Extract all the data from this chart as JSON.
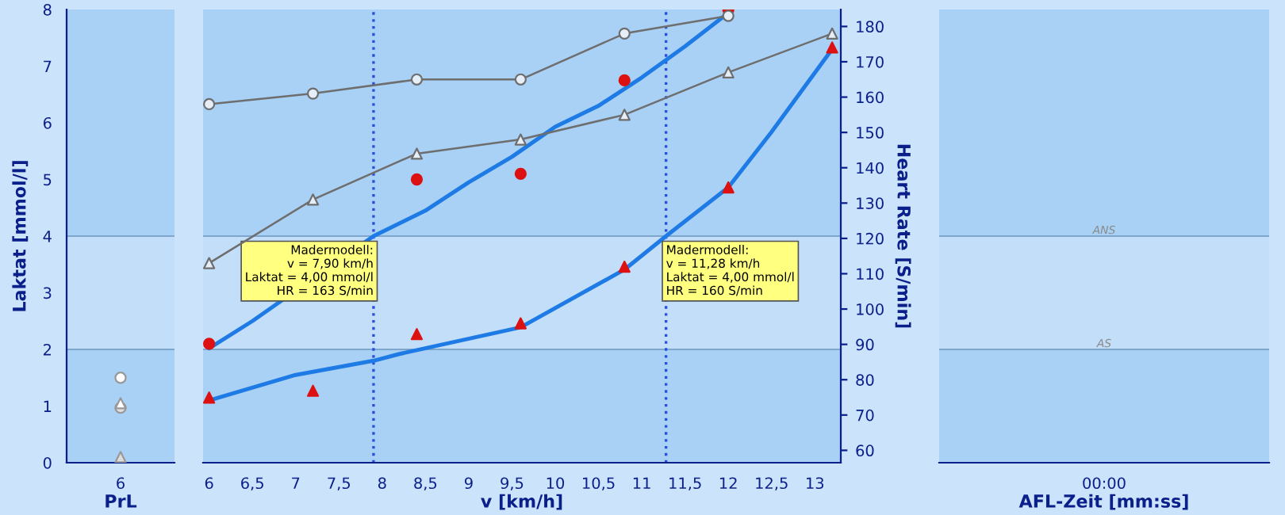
{
  "chart_data": [
    {
      "type": "scatter",
      "xlabel": "PrL",
      "ylabel": "Laktat [mmol/l]",
      "categories": [
        "6"
      ],
      "ylim": [
        0,
        8
      ],
      "yticks": [
        0,
        1,
        2,
        3,
        4,
        5,
        6,
        7,
        8
      ],
      "bands": [
        {
          "axis": "y",
          "from": 0,
          "to": 2,
          "color": "#a9d0f5"
        },
        {
          "axis": "y",
          "from": 2,
          "to": 4,
          "color": "#c3def8"
        },
        {
          "axis": "y",
          "from": 4,
          "to": 8,
          "color": "#a9d0f5"
        }
      ],
      "ref_lines": [
        {
          "axis": "y",
          "value": 2,
          "color": "#7fa6cc"
        },
        {
          "axis": "y",
          "value": 4,
          "color": "#7fa6cc"
        }
      ],
      "series": [
        {
          "marker": "circle",
          "color": "#ffffff",
          "values": [
            1.5
          ]
        },
        {
          "marker": "circle",
          "color": "#dddddd",
          "values": [
            0.97
          ]
        },
        {
          "marker": "triangle",
          "color": "#ffffff",
          "values": [
            1.05
          ]
        },
        {
          "marker": "triangle",
          "color": "#dddddd",
          "values": [
            0.1
          ]
        }
      ]
    },
    {
      "type": "line",
      "xlabel": "v [km/h]",
      "xlim": [
        5.93,
        13.3
      ],
      "xticks": [
        6,
        {
          "value": 6.5,
          "label": "6,5"
        },
        7,
        {
          "value": 7.5,
          "label": "7,5"
        },
        8,
        {
          "value": 8.5,
          "label": "8,5"
        },
        9,
        {
          "value": 9.5,
          "label": "9,5"
        },
        10,
        {
          "value": 10.5,
          "label": "10,5"
        },
        11,
        {
          "value": 11.5,
          "label": "11,5"
        },
        12,
        {
          "value": 12.5,
          "label": "12,5"
        },
        13
      ],
      "ylim": [
        0,
        8
      ],
      "y2lim": [
        56.5,
        184.8
      ],
      "y2ticks": [
        60,
        70,
        80,
        90,
        100,
        110,
        120,
        130,
        140,
        150,
        160,
        170,
        180
      ],
      "y2label": "Heart Rate [S/min]",
      "bands": [
        {
          "axis": "y",
          "from": 0,
          "to": 2,
          "color": "#a9d0f5"
        },
        {
          "axis": "y",
          "from": 2,
          "to": 4,
          "color": "#c3def8"
        },
        {
          "axis": "y",
          "from": 4,
          "to": 8,
          "color": "#a9d0f5"
        }
      ],
      "ref_lines": [
        {
          "axis": "y",
          "value": 2,
          "color": "#7fa6cc"
        },
        {
          "axis": "y",
          "value": 4,
          "color": "#7fa6cc"
        },
        {
          "axis": "x",
          "value": 7.9,
          "color": "#2a4fe0",
          "line_style": "dotted"
        },
        {
          "axis": "x",
          "value": 11.28,
          "color": "#2a4fe0",
          "line_style": "dotted"
        }
      ],
      "annotations": [
        {
          "text": "Madermodell:\nv = 7,90 km/h\nLaktat = 4,00 mmol/l\nHR = 163 S/min",
          "x": 7.9,
          "y": 4.0
        },
        {
          "text": "Madermodell:\nv = 11,28 km/h\nLaktat = 4,00 mmol/l\nHR = 160 S/min",
          "x": 11.28,
          "y": 4.0
        }
      ],
      "series": [
        {
          "axis": "y2",
          "marker": "circle",
          "color": "#6e6e6e",
          "x": [
            6,
            7.2,
            8.4,
            9.6,
            10.8,
            12.0
          ],
          "values": [
            158,
            161,
            165,
            165,
            178,
            183
          ]
        },
        {
          "axis": "y2",
          "marker": "triangle",
          "color": "#6e6e6e",
          "x": [
            6,
            7.2,
            8.4,
            9.6,
            10.8,
            12.0,
            13.2
          ],
          "values": [
            113,
            131,
            144,
            148,
            155,
            167,
            178
          ]
        },
        {
          "marker": "none",
          "color": "#1e7be6",
          "x": [
            6,
            6.5,
            7,
            7.5,
            7.9,
            8.5,
            9,
            9.5,
            10,
            10.5,
            11,
            11.5,
            12
          ],
          "values": [
            2.02,
            2.5,
            null,
            null,
            4.0,
            4.45,
            4.95,
            5.4,
            5.93,
            6.3,
            6.8,
            7.35,
            7.94
          ]
        },
        {
          "marker": "none",
          "color": "#1e7be6",
          "x": [
            6,
            7,
            7.9,
            8.2,
            9.6,
            10.8,
            11.28,
            12,
            12.5,
            13.2
          ],
          "values": [
            1.1,
            1.55,
            1.8,
            1.92,
            2.39,
            3.41,
            4.0,
            4.86,
            5.84,
            7.3
          ]
        },
        {
          "type": "scatter",
          "marker": "circle",
          "color": "#dd1111",
          "x": [
            6,
            8.4,
            9.6,
            10.8,
            12.0
          ],
          "values": [
            2.1,
            5.0,
            5.1,
            6.75,
            8.0
          ]
        },
        {
          "type": "scatter",
          "marker": "triangle",
          "color": "#dd1111",
          "x": [
            6,
            7.2,
            8.4,
            9.6,
            10.8,
            12.0,
            13.2
          ],
          "values": [
            1.15,
            1.27,
            2.27,
            2.46,
            3.46,
            4.86,
            7.33
          ]
        }
      ]
    },
    {
      "type": "scatter",
      "xlabel": "AFL-Zeit [mm:ss]",
      "categories": [
        "00:00"
      ],
      "ylim": [
        0,
        8
      ],
      "bands": [
        {
          "axis": "y",
          "from": 0,
          "to": 2,
          "color": "#a9d0f5"
        },
        {
          "axis": "y",
          "from": 2,
          "to": 4,
          "color": "#c3def8"
        },
        {
          "axis": "y",
          "from": 4,
          "to": 8,
          "color": "#a9d0f5"
        }
      ],
      "ref_lines": [
        {
          "axis": "y",
          "value": 2,
          "label": "AS",
          "color": "#7fa6cc"
        },
        {
          "axis": "y",
          "value": 4,
          "label": "ANS",
          "color": "#7fa6cc"
        }
      ]
    }
  ]
}
